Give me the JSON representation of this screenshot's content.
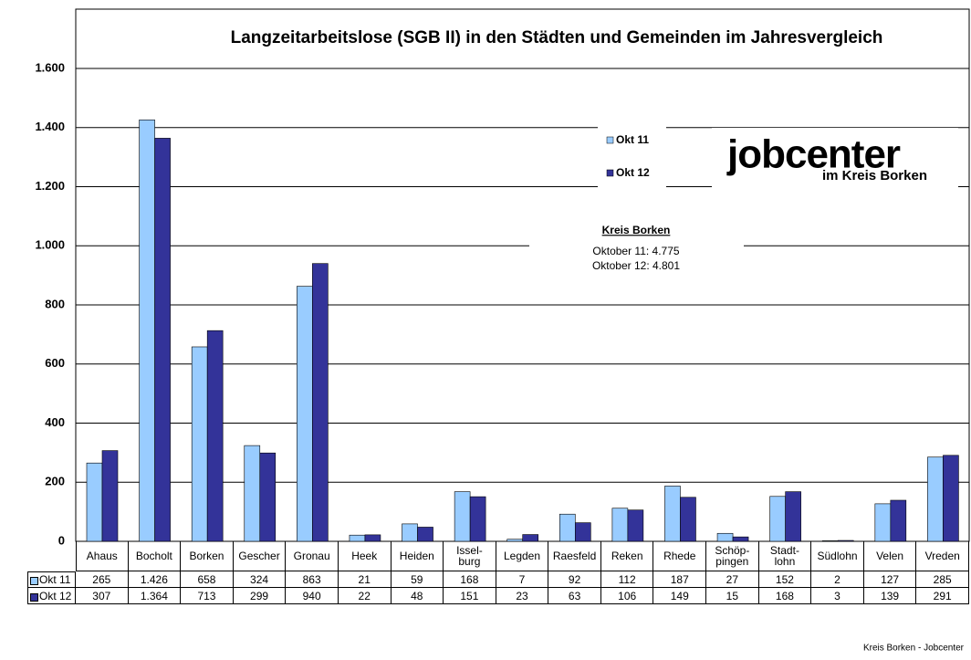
{
  "chart_data": {
    "type": "bar",
    "title": "Langzeitarbeitslose (SGB II) in den Städten und Gemeinden im Jahresvergleich",
    "categories": [
      "Ahaus",
      "Bocholt",
      "Borken",
      "Gescher",
      "Gronau",
      "Heek",
      "Heiden",
      "Issel-\nburg",
      "Legden",
      "Raesfeld",
      "Reken",
      "Rhede",
      "Schöp-\npingen",
      "Stadt-\nlohn",
      "Südlohn",
      "Velen",
      "Vreden"
    ],
    "series": [
      {
        "name": "Okt 11",
        "color": "#99ccff",
        "values": [
          265,
          1426,
          658,
          324,
          863,
          21,
          59,
          168,
          7,
          92,
          112,
          187,
          27,
          152,
          2,
          127,
          285
        ],
        "value_labels": [
          "265",
          "1.426",
          "658",
          "324",
          "863",
          "21",
          "59",
          "168",
          "7",
          "92",
          "112",
          "187",
          "27",
          "152",
          "2",
          "127",
          "285"
        ]
      },
      {
        "name": "Okt 12",
        "color": "#333399",
        "values": [
          307,
          1364,
          713,
          299,
          940,
          22,
          48,
          151,
          23,
          63,
          106,
          149,
          15,
          168,
          3,
          139,
          291
        ],
        "value_labels": [
          "307",
          "1.364",
          "713",
          "299",
          "940",
          "22",
          "48",
          "151",
          "23",
          "63",
          "106",
          "149",
          "15",
          "168",
          "3",
          "139",
          "291"
        ]
      }
    ],
    "ylim": [
      0,
      1600
    ],
    "yticks": [
      0,
      200,
      400,
      600,
      800,
      {
        "value": 1000,
        "label": "1.000"
      },
      {
        "value": 1200,
        "label": "1.200"
      },
      {
        "value": 1400,
        "label": "1.400"
      },
      {
        "value": 1600,
        "label": "1.600"
      }
    ],
    "grid": true,
    "annotation": {
      "title": "Kreis Borken",
      "lines": [
        "Oktober 11: 4.775",
        "Oktober 12: 4.801"
      ]
    },
    "logo": {
      "name": "jobcenter",
      "subtitle": "im Kreis Borken"
    },
    "footer": "Kreis Borken - Jobcenter"
  }
}
